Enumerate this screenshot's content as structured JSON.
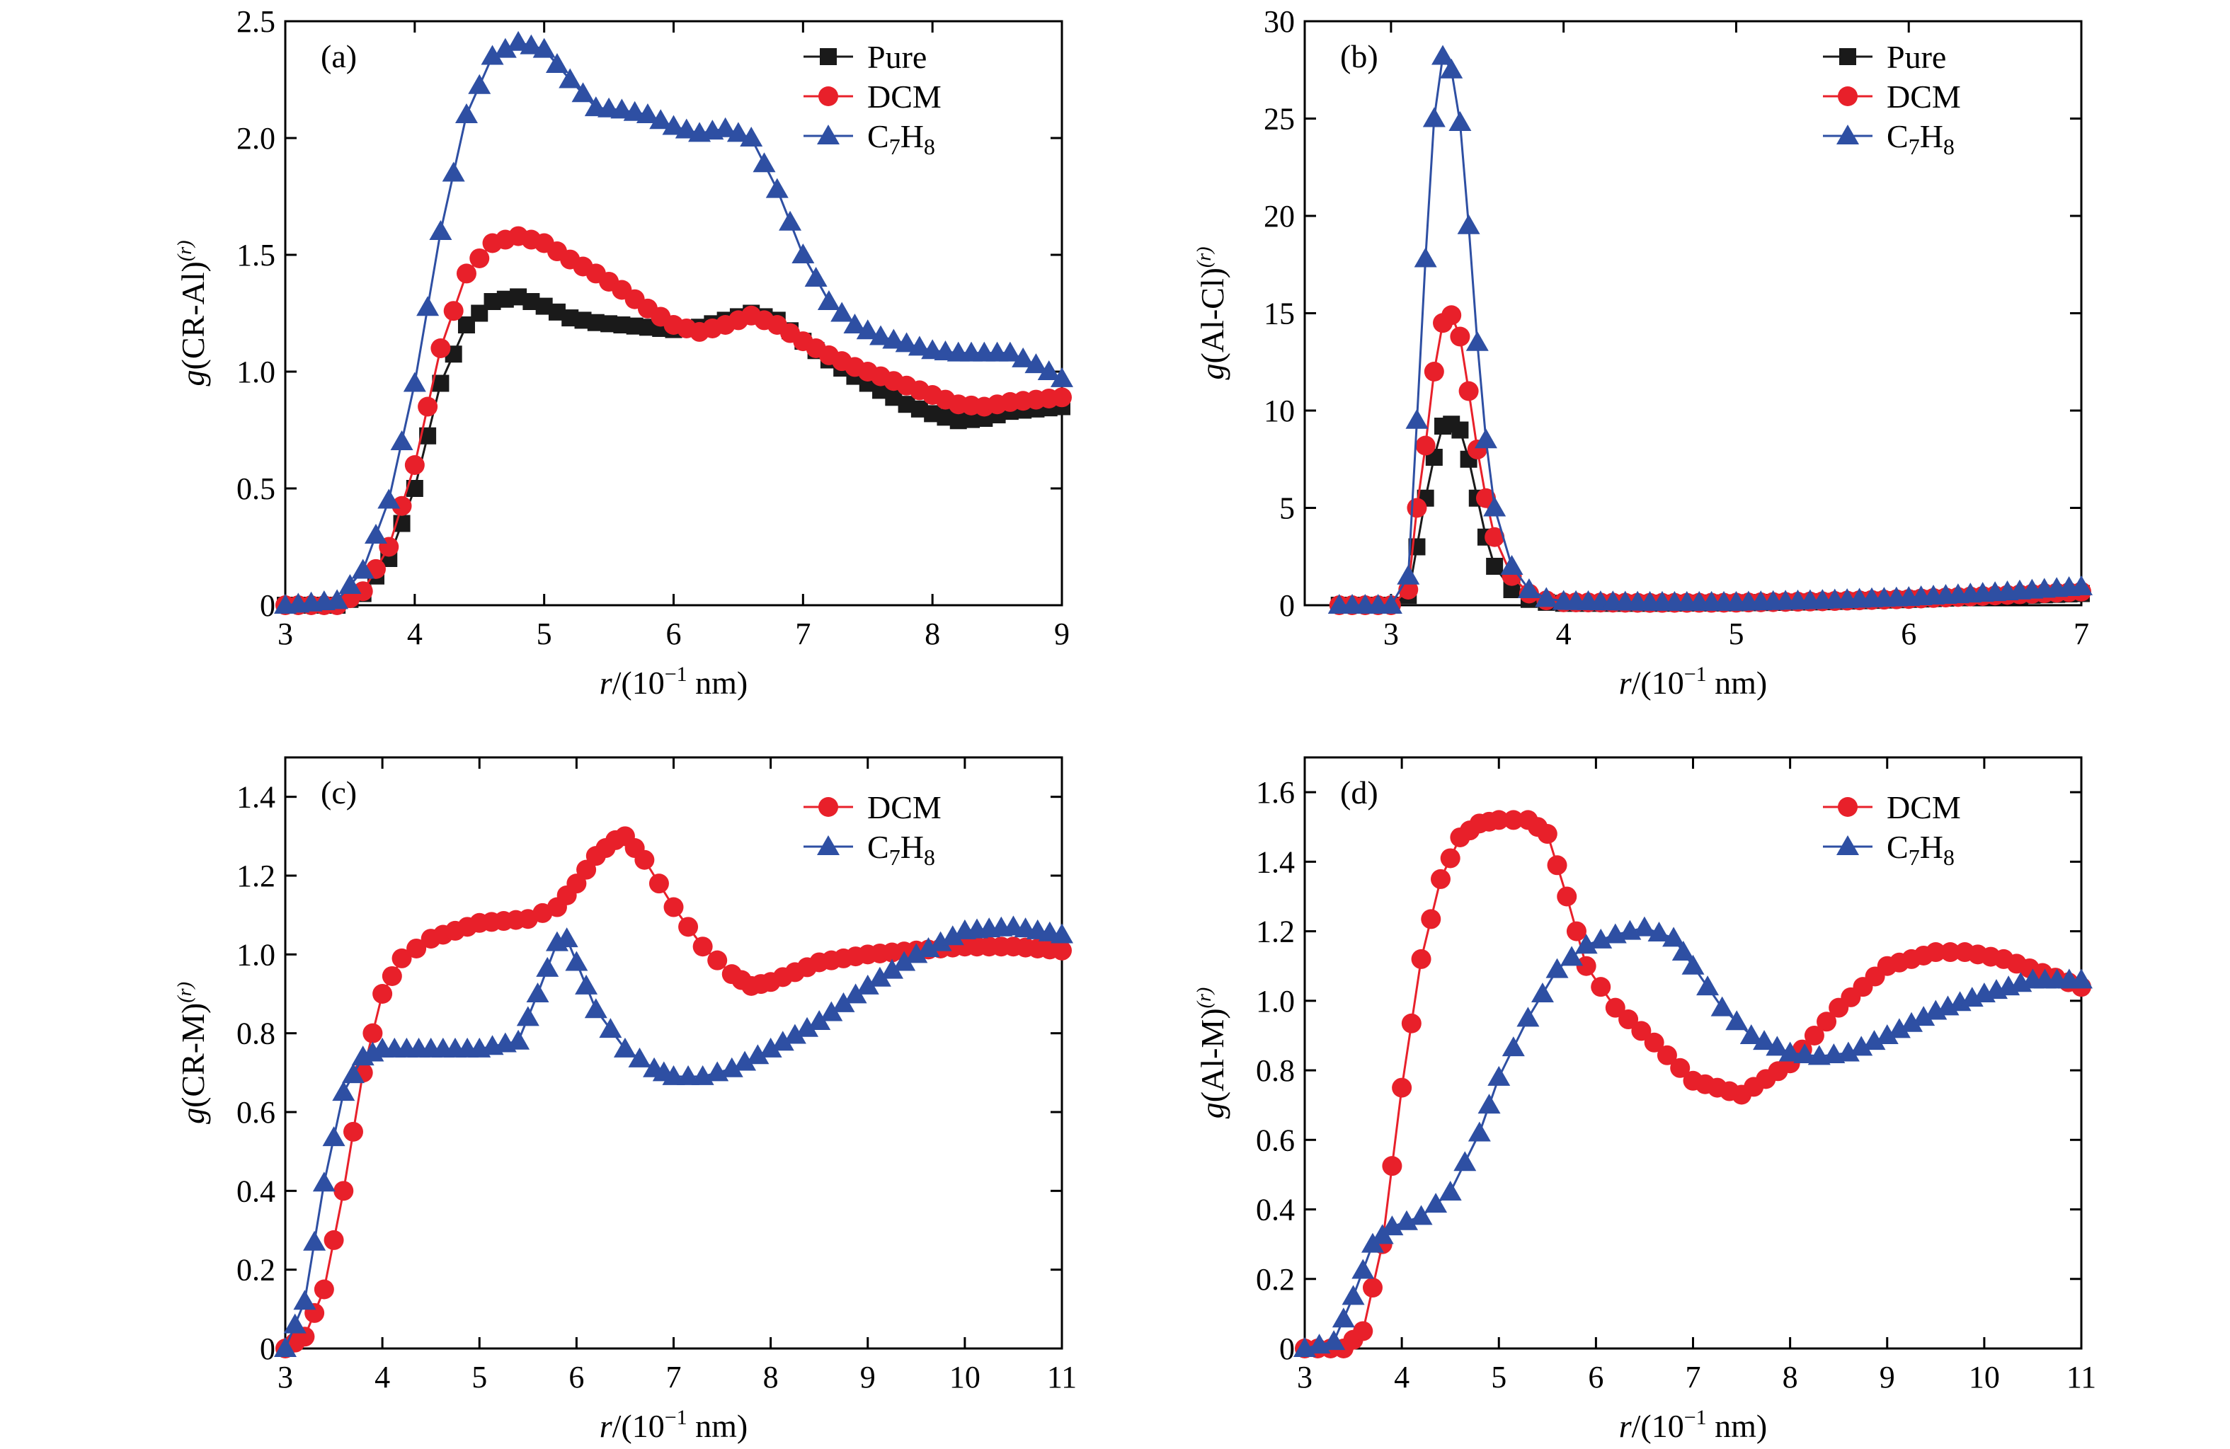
{
  "colors": {
    "pure": "#1a1a1a",
    "dcm": "#e8202a",
    "c7h8": "#2e4fa3"
  },
  "series_styles": {
    "Pure": {
      "color": "#1a1a1a",
      "marker": "square"
    },
    "DCM": {
      "color": "#e8202a",
      "marker": "circle"
    },
    "C7H8": {
      "color": "#2e4fa3",
      "marker": "triangle"
    }
  },
  "chart_data": [
    {
      "panel": "(a)",
      "type": "line",
      "xlabel": {
        "italic": "r",
        "rest": "/(10",
        "sup": "−1",
        "tail": " nm)"
      },
      "ylabel": {
        "italic": "g",
        "rest": "(CR-Al)",
        "sup": "(r)"
      },
      "xlim": [
        3,
        9
      ],
      "ylim": [
        0,
        2.5
      ],
      "xticks": [
        "3",
        "4",
        "5",
        "6",
        "7",
        "8",
        "9"
      ],
      "yticks": [
        "0",
        "0.5",
        "1.0",
        "1.5",
        "2.0",
        "2.5"
      ],
      "xtick_values": [
        3,
        4,
        5,
        6,
        7,
        8,
        9
      ],
      "ytick_values": [
        0,
        0.5,
        1.0,
        1.5,
        2.0,
        2.5
      ],
      "legend": [
        {
          "label": "Pure",
          "sub": ""
        },
        {
          "label": "DCM",
          "sub": ""
        },
        {
          "label": "C7H8",
          "parts": [
            "C",
            "7",
            "H",
            "8"
          ]
        }
      ],
      "series": [
        {
          "name": "Pure",
          "style": "Pure",
          "x": [
            3.0,
            3.4,
            3.6,
            3.8,
            4.0,
            4.2,
            4.4,
            4.6,
            4.8,
            5.0,
            5.2,
            5.4,
            5.6,
            5.8,
            6.0,
            6.2,
            6.4,
            6.6,
            6.8,
            7.0,
            7.2,
            7.4,
            7.6,
            7.8,
            8.0,
            8.2,
            8.4,
            8.6,
            8.8,
            9.0
          ],
          "values": [
            0.0,
            0.0,
            0.05,
            0.2,
            0.5,
            0.95,
            1.2,
            1.3,
            1.32,
            1.28,
            1.23,
            1.21,
            1.2,
            1.19,
            1.18,
            1.19,
            1.22,
            1.25,
            1.22,
            1.13,
            1.05,
            0.98,
            0.92,
            0.86,
            0.82,
            0.79,
            0.8,
            0.83,
            0.84,
            0.85
          ]
        },
        {
          "name": "DCM",
          "style": "DCM",
          "x": [
            3.0,
            3.4,
            3.6,
            3.8,
            4.0,
            4.2,
            4.4,
            4.6,
            4.8,
            5.0,
            5.2,
            5.4,
            5.6,
            5.8,
            6.0,
            6.2,
            6.4,
            6.6,
            6.8,
            7.0,
            7.2,
            7.4,
            7.6,
            7.8,
            8.0,
            8.2,
            8.4,
            8.6,
            8.8,
            9.0
          ],
          "values": [
            0.0,
            0.0,
            0.06,
            0.25,
            0.6,
            1.1,
            1.42,
            1.55,
            1.58,
            1.55,
            1.48,
            1.42,
            1.35,
            1.27,
            1.2,
            1.17,
            1.2,
            1.24,
            1.2,
            1.13,
            1.07,
            1.02,
            0.98,
            0.94,
            0.9,
            0.86,
            0.85,
            0.87,
            0.88,
            0.89
          ]
        },
        {
          "name": "C7H8",
          "style": "C7H8",
          "x": [
            3.0,
            3.4,
            3.6,
            3.8,
            4.0,
            4.2,
            4.4,
            4.6,
            4.8,
            5.0,
            5.2,
            5.4,
            5.6,
            5.8,
            6.0,
            6.2,
            6.4,
            6.6,
            6.8,
            7.0,
            7.2,
            7.4,
            7.6,
            7.8,
            8.0,
            8.2,
            8.4,
            8.6,
            8.8,
            9.0
          ],
          "values": [
            0.0,
            0.02,
            0.15,
            0.45,
            0.95,
            1.6,
            2.1,
            2.35,
            2.41,
            2.38,
            2.25,
            2.13,
            2.12,
            2.1,
            2.05,
            2.02,
            2.04,
            2.0,
            1.78,
            1.5,
            1.3,
            1.2,
            1.15,
            1.12,
            1.09,
            1.08,
            1.08,
            1.08,
            1.03,
            0.97
          ]
        }
      ]
    },
    {
      "panel": "(b)",
      "type": "line",
      "xlabel": {
        "italic": "r",
        "rest": "/(10",
        "sup": "−1",
        "tail": " nm)"
      },
      "ylabel": {
        "italic": "g",
        "rest": "(Al-Cl)",
        "sup": "(r)"
      },
      "xlim": [
        2.5,
        7
      ],
      "ylim": [
        0,
        30
      ],
      "xticks": [
        "3",
        "4",
        "5",
        "6",
        "7"
      ],
      "yticks": [
        "0",
        "5",
        "10",
        "15",
        "20",
        "25",
        "30"
      ],
      "xtick_values": [
        3,
        4,
        5,
        6,
        7
      ],
      "ytick_values": [
        0,
        5,
        10,
        15,
        20,
        25,
        30
      ],
      "legend": [
        {
          "label": "Pure",
          "sub": ""
        },
        {
          "label": "DCM",
          "sub": ""
        },
        {
          "label": "C7H8",
          "parts": [
            "C",
            "7",
            "H",
            "8"
          ]
        }
      ],
      "series": [
        {
          "name": "Pure",
          "style": "Pure",
          "x": [
            2.7,
            3.0,
            3.1,
            3.15,
            3.2,
            3.25,
            3.3,
            3.35,
            3.4,
            3.45,
            3.5,
            3.55,
            3.6,
            3.7,
            3.8,
            3.9,
            4.0,
            4.5,
            5.0,
            5.5,
            6.0,
            6.5,
            7.0
          ],
          "values": [
            0.0,
            0.0,
            0.5,
            3.0,
            5.5,
            7.6,
            9.2,
            9.3,
            9.0,
            7.5,
            5.5,
            3.5,
            2.0,
            0.8,
            0.3,
            0.15,
            0.1,
            0.1,
            0.12,
            0.18,
            0.3,
            0.45,
            0.6
          ]
        },
        {
          "name": "DCM",
          "style": "DCM",
          "x": [
            2.7,
            3.0,
            3.1,
            3.15,
            3.2,
            3.25,
            3.3,
            3.35,
            3.4,
            3.45,
            3.5,
            3.55,
            3.6,
            3.7,
            3.8,
            3.9,
            4.0,
            4.5,
            5.0,
            5.5,
            6.0,
            6.5,
            7.0
          ],
          "values": [
            0.0,
            0.0,
            0.8,
            5.0,
            8.2,
            12.0,
            14.5,
            14.9,
            13.8,
            11.0,
            8.0,
            5.5,
            3.5,
            1.5,
            0.6,
            0.25,
            0.15,
            0.12,
            0.13,
            0.2,
            0.32,
            0.5,
            0.7
          ]
        },
        {
          "name": "C7H8",
          "style": "C7H8",
          "x": [
            2.7,
            3.0,
            3.1,
            3.15,
            3.2,
            3.25,
            3.3,
            3.35,
            3.4,
            3.45,
            3.5,
            3.55,
            3.6,
            3.7,
            3.8,
            3.9,
            4.0,
            4.5,
            5.0,
            5.5,
            6.0,
            6.5,
            7.0
          ],
          "values": [
            0.0,
            0.0,
            1.5,
            9.5,
            17.8,
            25.0,
            28.2,
            27.5,
            24.8,
            19.5,
            13.5,
            8.5,
            5.0,
            2.0,
            0.8,
            0.35,
            0.2,
            0.15,
            0.15,
            0.25,
            0.4,
            0.65,
            0.95
          ]
        }
      ]
    },
    {
      "panel": "(c)",
      "type": "line",
      "xlabel": {
        "italic": "r",
        "rest": "/(10",
        "sup": "−1",
        "tail": " nm)"
      },
      "ylabel": {
        "italic": "g",
        "rest": "(CR-M)",
        "sup": "(r)"
      },
      "xlim": [
        3,
        11
      ],
      "ylim": [
        0,
        1.5
      ],
      "xticks": [
        "3",
        "4",
        "5",
        "6",
        "7",
        "8",
        "9",
        "10",
        "11"
      ],
      "yticks": [
        "0",
        "0.2",
        "0.4",
        "0.6",
        "0.8",
        "1.0",
        "1.2",
        "1.4"
      ],
      "xtick_values": [
        3,
        4,
        5,
        6,
        7,
        8,
        9,
        10,
        11
      ],
      "ytick_values": [
        0,
        0.2,
        0.4,
        0.6,
        0.8,
        1.0,
        1.2,
        1.4
      ],
      "legend": [
        {
          "label": "DCM",
          "sub": ""
        },
        {
          "label": "C7H8",
          "parts": [
            "C",
            "7",
            "H",
            "8"
          ]
        }
      ],
      "series": [
        {
          "name": "DCM",
          "style": "DCM",
          "x": [
            3.0,
            3.2,
            3.4,
            3.6,
            3.8,
            4.0,
            4.2,
            4.5,
            5.0,
            5.5,
            5.8,
            6.0,
            6.2,
            6.4,
            6.5,
            6.7,
            7.0,
            7.3,
            7.6,
            7.8,
            8.0,
            8.5,
            9.0,
            9.5,
            10.0,
            10.5,
            11.0
          ],
          "values": [
            0.0,
            0.03,
            0.15,
            0.4,
            0.7,
            0.9,
            0.99,
            1.04,
            1.08,
            1.09,
            1.12,
            1.18,
            1.25,
            1.29,
            1.3,
            1.24,
            1.12,
            1.02,
            0.95,
            0.92,
            0.93,
            0.98,
            1.0,
            1.01,
            1.02,
            1.02,
            1.01
          ]
        },
        {
          "name": "C7H8",
          "style": "C7H8",
          "x": [
            3.0,
            3.2,
            3.4,
            3.6,
            3.8,
            4.0,
            4.5,
            5.0,
            5.4,
            5.6,
            5.8,
            5.9,
            6.0,
            6.2,
            6.5,
            6.8,
            7.0,
            7.3,
            7.6,
            8.0,
            8.5,
            9.0,
            9.5,
            10.0,
            10.5,
            11.0
          ],
          "values": [
            0.0,
            0.12,
            0.42,
            0.65,
            0.74,
            0.76,
            0.76,
            0.76,
            0.78,
            0.9,
            1.03,
            1.04,
            0.98,
            0.86,
            0.76,
            0.71,
            0.69,
            0.69,
            0.71,
            0.76,
            0.83,
            0.92,
            1.0,
            1.06,
            1.07,
            1.05
          ]
        }
      ]
    },
    {
      "panel": "(d)",
      "type": "line",
      "xlabel": {
        "italic": "r",
        "rest": "/(10",
        "sup": "−1",
        "tail": " nm)"
      },
      "ylabel": {
        "italic": "g",
        "rest": "(Al-M)",
        "sup": "(r)"
      },
      "xlim": [
        3,
        11
      ],
      "ylim": [
        0,
        1.7
      ],
      "xticks": [
        "3",
        "4",
        "5",
        "6",
        "7",
        "8",
        "9",
        "10",
        "11"
      ],
      "yticks": [
        "0",
        "0.2",
        "0.4",
        "0.6",
        "0.8",
        "1.0",
        "1.2",
        "1.4",
        "1.6"
      ],
      "xtick_values": [
        3,
        4,
        5,
        6,
        7,
        8,
        9,
        10,
        11
      ],
      "ytick_values": [
        0,
        0.2,
        0.4,
        0.6,
        0.8,
        1.0,
        1.2,
        1.4,
        1.6
      ],
      "legend": [
        {
          "label": "DCM",
          "sub": ""
        },
        {
          "label": "C7H8",
          "parts": [
            "C",
            "7",
            "H",
            "8"
          ]
        }
      ],
      "series": [
        {
          "name": "DCM",
          "style": "DCM",
          "x": [
            3.0,
            3.4,
            3.6,
            3.8,
            4.0,
            4.2,
            4.4,
            4.6,
            4.8,
            5.0,
            5.3,
            5.5,
            5.7,
            5.9,
            6.2,
            6.6,
            7.0,
            7.5,
            8.0,
            8.5,
            9.0,
            9.5,
            9.8,
            10.2,
            10.6,
            11.0
          ],
          "values": [
            0.0,
            0.0,
            0.05,
            0.3,
            0.75,
            1.12,
            1.35,
            1.47,
            1.51,
            1.52,
            1.52,
            1.48,
            1.3,
            1.1,
            0.98,
            0.88,
            0.77,
            0.73,
            0.82,
            0.98,
            1.1,
            1.14,
            1.14,
            1.12,
            1.08,
            1.04
          ]
        },
        {
          "name": "C7H8",
          "style": "C7H8",
          "x": [
            3.0,
            3.3,
            3.5,
            3.7,
            3.9,
            4.2,
            4.5,
            4.8,
            5.0,
            5.3,
            5.6,
            5.9,
            6.2,
            6.5,
            6.8,
            7.0,
            7.3,
            7.6,
            8.0,
            8.3,
            8.6,
            9.0,
            9.5,
            10.0,
            10.5,
            11.0
          ],
          "values": [
            0.0,
            0.02,
            0.15,
            0.3,
            0.35,
            0.38,
            0.45,
            0.62,
            0.78,
            0.95,
            1.09,
            1.16,
            1.19,
            1.21,
            1.18,
            1.1,
            0.98,
            0.9,
            0.85,
            0.84,
            0.85,
            0.9,
            0.97,
            1.02,
            1.06,
            1.06
          ]
        }
      ]
    }
  ]
}
